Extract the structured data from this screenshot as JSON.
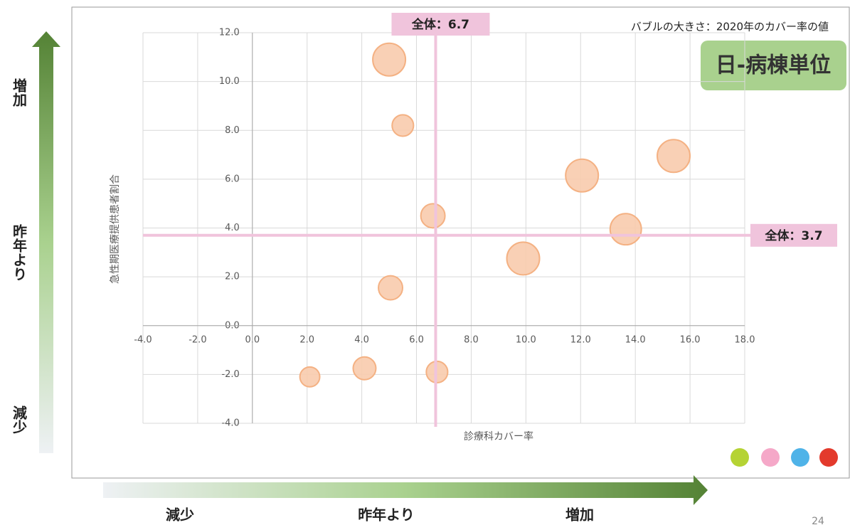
{
  "chart_data": {
    "type": "bubble",
    "x_label": "診療科カバー率",
    "y_label": "急性期医療提供患者割合",
    "annotation": "バブルの大きさ：2020年のカバー率の値",
    "badge": "日-病棟単位",
    "series": [
      {
        "color": "#f8cbad",
        "x": [
          5.0,
          5.5,
          6.6,
          5.05,
          2.1,
          4.1,
          6.75,
          9.9,
          12.05,
          13.65,
          15.4
        ],
        "values": [
          10.9,
          8.2,
          4.5,
          1.55,
          -2.1,
          -1.75,
          -1.9,
          2.75,
          6.15,
          3.95,
          6.95
        ],
        "sizes": [
          14.7,
          6.3,
          8.0,
          8.0,
          5.4,
          7.1,
          6.3,
          14.7,
          14.7,
          13.4,
          14.7
        ]
      }
    ],
    "xlim": [
      -4,
      18
    ],
    "xticks": [
      {
        "value": -4,
        "label": "-4.0"
      },
      {
        "value": -2,
        "label": "-2.0"
      },
      {
        "value": 0,
        "label": "0.0"
      },
      {
        "value": 2,
        "label": "2.0"
      },
      {
        "value": 4,
        "label": "4.0"
      },
      {
        "value": 6,
        "label": "6.0"
      },
      {
        "value": 8,
        "label": "8.0"
      },
      {
        "value": 10,
        "label": "10.0"
      },
      {
        "value": 12,
        "label": "12.0"
      },
      {
        "value": 14,
        "label": "14.0"
      },
      {
        "value": 16,
        "label": "16.0"
      },
      {
        "value": 18,
        "label": "18.0"
      }
    ],
    "ylim": [
      -4,
      12
    ],
    "yticks": [
      {
        "value": -4,
        "label": "-4.0"
      },
      {
        "value": -2,
        "label": "-2.0"
      },
      {
        "value": 0,
        "label": "0.0"
      },
      {
        "value": 2,
        "label": "2.0"
      },
      {
        "value": 4,
        "label": "4.0"
      },
      {
        "value": 6,
        "label": "6.0"
      },
      {
        "value": 8,
        "label": "8.0"
      },
      {
        "value": 10,
        "label": "10.0"
      },
      {
        "value": 12,
        "label": "12.0"
      }
    ],
    "grid": true,
    "reference_lines": [
      {
        "axis": "x",
        "value": 6.7,
        "label": "全体：6.7",
        "color": "#f0c4dc"
      },
      {
        "axis": "y",
        "value": 3.7,
        "label": "全体：3.7",
        "color": "#f0c4dc"
      }
    ]
  },
  "arrows": {
    "vertical": [
      "増加",
      "昨年より",
      "減少"
    ],
    "horizontal": [
      "減少",
      "昨年より",
      "増加"
    ]
  },
  "page_number": "24"
}
